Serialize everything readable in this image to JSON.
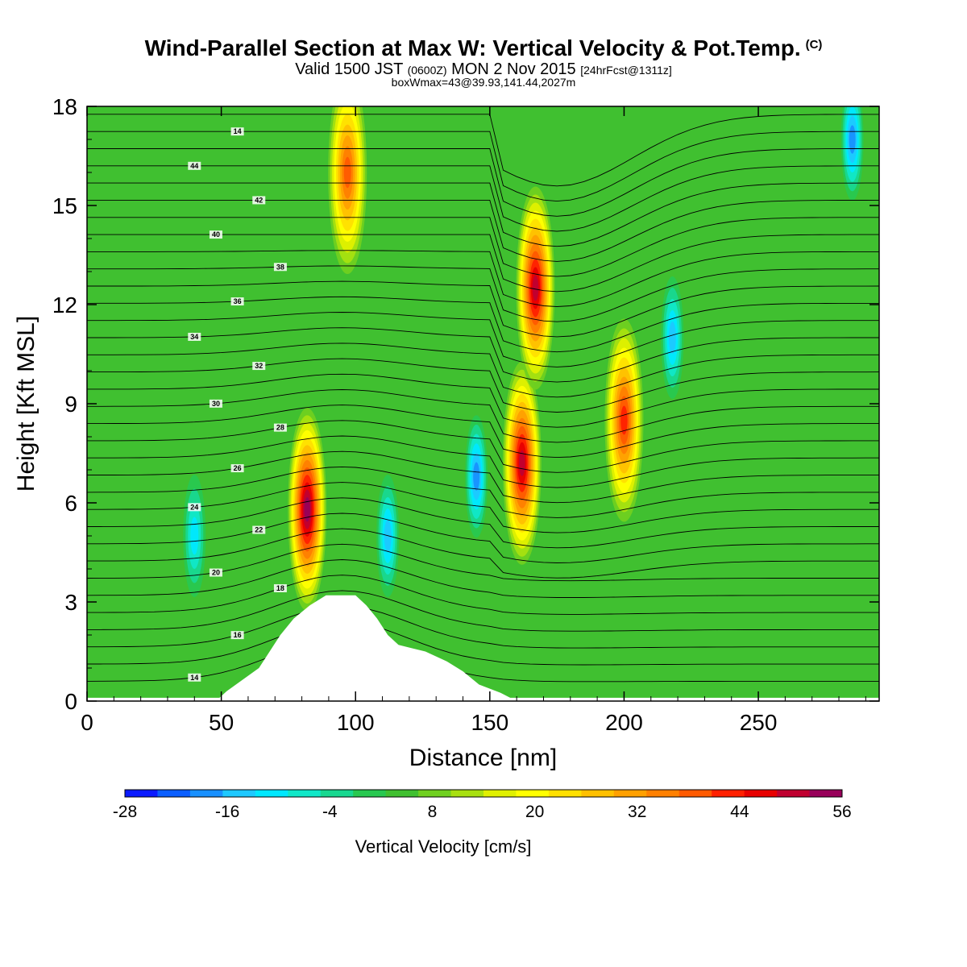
{
  "title": {
    "main": "Wind-Parallel Section at Max W: Vertical Velocity & Pot.Temp.",
    "copyright": "(C)",
    "valid_prefix": "Valid 1500 JST",
    "valid_utc": "(0600Z)",
    "valid_date": "MON 2 Nov 2015",
    "forecast": "[24hrFcst@1311z]",
    "box_info": "boxWmax=43@39.93,141.44,2027m"
  },
  "chart_data": {
    "type": "heatmap",
    "xlabel": "Distance [nm]",
    "ylabel": "Height [Kft MSL]",
    "xlim": [
      0,
      295
    ],
    "ylim": [
      0,
      18
    ],
    "x_ticks": [
      "0",
      "50",
      "100",
      "150",
      "200",
      "250"
    ],
    "y_ticks": [
      "0",
      "3",
      "6",
      "9",
      "12",
      "15",
      "18"
    ],
    "colorbar": {
      "label": "Vertical Velocity [cm/s]",
      "tick_labels": [
        "-28",
        "-16",
        "-4",
        "8",
        "20",
        "32",
        "44",
        "56"
      ],
      "levels_min": -28,
      "levels_max": 56,
      "level_step": 4,
      "colors": [
        "#0a1aff",
        "#0a5eff",
        "#1890ff",
        "#1ec8ff",
        "#00e8ff",
        "#10e8c8",
        "#18d890",
        "#28c850",
        "#40c030",
        "#70d020",
        "#a8e010",
        "#e0f000",
        "#ffff00",
        "#ffe000",
        "#ffc000",
        "#ffa000",
        "#ff8000",
        "#ff5a00",
        "#ff2000",
        "#e80000",
        "#c00030",
        "#98005a"
      ]
    },
    "terrain_top_kft": [
      0,
      0,
      0.3,
      0.65,
      1.0,
      1.5,
      2.0,
      2.5,
      2.9,
      3.2,
      3.2,
      2.9,
      2.5,
      2.0,
      1.7,
      1.5,
      1.2,
      0.9,
      0.5,
      0.25,
      0
    ],
    "terrain_x_nm": [
      0,
      48,
      52,
      58,
      64,
      68,
      72,
      77,
      83,
      89,
      100,
      104,
      108,
      112,
      116,
      126,
      134,
      140,
      146,
      154,
      160
    ],
    "vertical_velocity_features": [
      {
        "x_nm": 82,
        "y_kft": 5.8,
        "w_cm_s": 52
      },
      {
        "x_nm": 162,
        "y_kft": 7.2,
        "w_cm_s": 48
      },
      {
        "x_nm": 167,
        "y_kft": 12.5,
        "w_cm_s": 48
      },
      {
        "x_nm": 200,
        "y_kft": 8.5,
        "w_cm_s": 40
      },
      {
        "x_nm": 97,
        "y_kft": 16.0,
        "w_cm_s": 36
      },
      {
        "x_nm": 145,
        "y_kft": 6.8,
        "w_cm_s": -24
      },
      {
        "x_nm": 112,
        "y_kft": 5.0,
        "w_cm_s": -20
      },
      {
        "x_nm": 40,
        "y_kft": 5.0,
        "w_cm_s": -16
      },
      {
        "x_nm": 218,
        "y_kft": 11.0,
        "w_cm_s": -20
      },
      {
        "x_nm": 285,
        "y_kft": 17.0,
        "w_cm_s": -24
      }
    ],
    "theta_contour_labels": [
      "14",
      "16",
      "18",
      "20",
      "22",
      "24",
      "26",
      "28",
      "30",
      "32",
      "34",
      "36",
      "38",
      "40",
      "42",
      "44"
    ]
  }
}
